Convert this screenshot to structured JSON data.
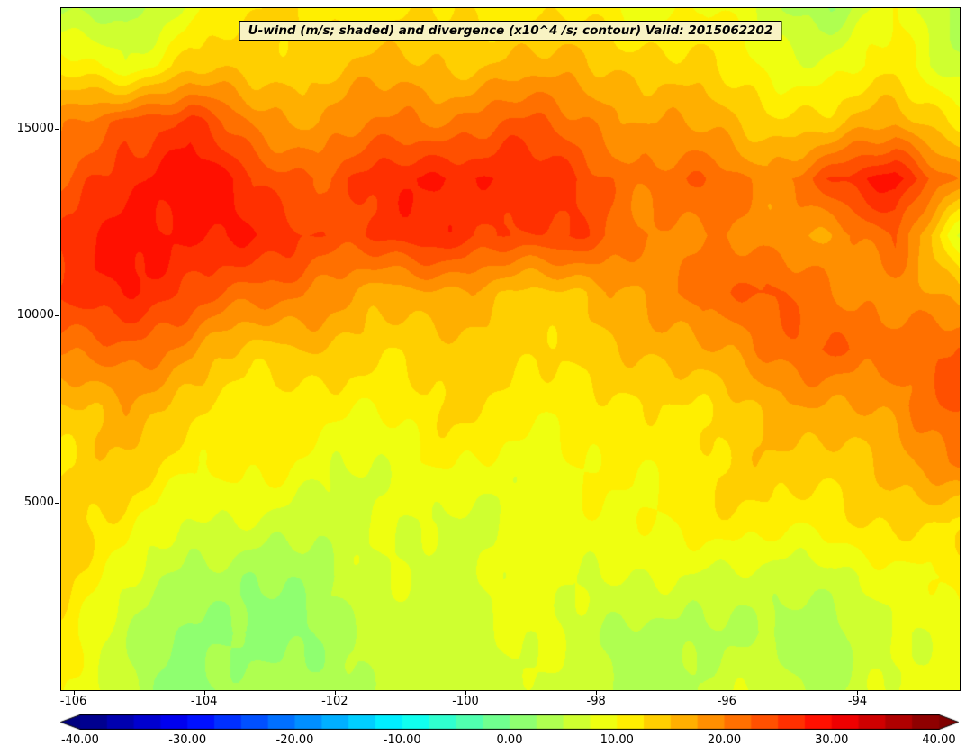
{
  "colors": {
    "title_box_bg": "#f8f3c3",
    "axis_color": "#000000",
    "background": "#ffffff"
  },
  "chart_data": {
    "type": "filled_contour",
    "title": "U-wind (m/s; shaded) and divergence (x10^4 /s; contour) Valid: 2015062202",
    "xlabel": "",
    "ylabel": "",
    "grid": false,
    "legend_position": "colorbar-bottom",
    "x_range": [
      -106.2,
      -92.45
    ],
    "y_range": [
      0,
      18250
    ],
    "x_ticks": [
      -106,
      -104,
      -102,
      -100,
      -98,
      -96,
      -94
    ],
    "x_tick_labels": [
      "-106",
      "-104",
      "-102",
      "-100",
      "-98",
      "-96",
      "-94"
    ],
    "y_ticks": [
      5000,
      10000,
      15000
    ],
    "y_tick_labels": [
      "5000",
      "10000",
      "15000"
    ],
    "colormap": "jet",
    "levels": {
      "min": -40,
      "max": 40,
      "step": 2.5
    },
    "colorbar_ticks": [
      -40,
      -30,
      -20,
      -10,
      0,
      10,
      20,
      30,
      40
    ],
    "colorbar_tick_labels": [
      "-40.00",
      "-30.00",
      "-20.00",
      "-10.00",
      "0.00",
      "10.00",
      "20.00",
      "30.00",
      "40.00"
    ],
    "field_units": "m/s",
    "grid_x": [
      -106.2,
      -105.23,
      -104.26,
      -103.29,
      -102.31,
      -101.34,
      -100.37,
      -99.4,
      -98.43,
      -97.46,
      -96.49,
      -95.51,
      -94.54,
      -93.57,
      -92.6
    ],
    "grid_y_top_to_bottom": [
      18250,
      16730,
      15210,
      13690,
      12170,
      10650,
      9125,
      7605,
      6085,
      4565,
      3040,
      1520,
      0
    ],
    "values_u_wind_ms": [
      [
        4,
        2,
        9,
        11,
        12,
        11,
        13,
        13,
        12,
        9,
        10,
        5,
        3,
        9,
        4
      ],
      [
        10,
        8,
        14,
        13,
        14,
        15,
        15,
        16,
        15,
        14,
        12,
        10,
        8,
        10,
        6
      ],
      [
        18,
        25,
        26,
        20,
        18,
        19,
        20,
        22,
        20,
        18,
        17,
        15,
        14,
        17,
        12
      ],
      [
        22,
        28,
        30,
        25,
        24,
        26,
        28,
        27,
        25,
        22,
        22,
        19,
        25,
        29,
        20
      ],
      [
        25,
        28,
        28,
        26,
        25,
        26,
        27,
        26,
        25,
        21,
        19,
        17,
        18,
        22,
        9
      ],
      [
        26,
        26,
        25,
        21,
        18,
        17,
        17,
        16,
        15,
        16,
        22,
        22,
        20,
        18,
        15
      ],
      [
        21,
        22,
        19,
        15,
        14,
        13,
        13,
        13,
        13,
        14,
        18,
        21,
        23,
        22,
        21
      ],
      [
        16,
        17,
        14,
        12,
        11,
        11,
        12,
        11,
        11,
        12,
        14,
        16,
        18,
        20,
        22
      ],
      [
        13,
        14,
        11,
        10,
        9,
        9,
        10,
        10,
        10,
        11,
        12,
        13,
        14,
        16,
        21
      ],
      [
        12,
        11,
        7,
        6,
        6,
        7,
        8,
        9,
        9,
        10,
        10,
        11,
        11,
        12,
        14
      ],
      [
        12,
        9,
        4,
        3,
        4,
        6,
        7,
        8,
        7,
        8,
        6,
        8,
        6,
        8,
        11
      ],
      [
        11,
        7,
        2,
        2,
        4,
        5,
        6,
        7,
        6,
        5,
        4,
        6,
        4,
        7,
        10
      ],
      [
        10,
        6,
        1,
        3,
        5,
        6,
        6,
        7,
        6,
        5,
        5,
        7,
        5,
        8,
        10
      ]
    ]
  }
}
